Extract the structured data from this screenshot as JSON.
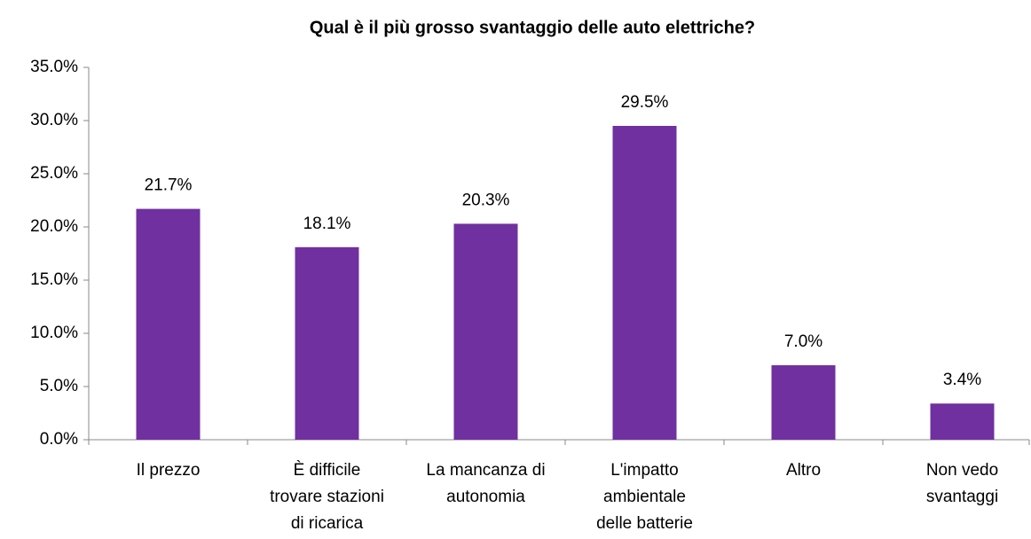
{
  "chart_data": {
    "type": "bar",
    "title": "Qual è il più grosso svantaggio delle auto elettriche?",
    "categories": [
      [
        "Il prezzo"
      ],
      [
        "È difficile",
        "trovare stazioni",
        "di ricarica"
      ],
      [
        "La mancanza di",
        "autonomia"
      ],
      [
        "L'impatto",
        "ambientale",
        "delle batterie"
      ],
      [
        "Altro"
      ],
      [
        "Non vedo",
        "svantaggi"
      ]
    ],
    "values": [
      21.7,
      18.1,
      20.3,
      29.5,
      7.0,
      3.4
    ],
    "value_labels": [
      "21.7%",
      "18.1%",
      "20.3%",
      "29.5%",
      "7.0%",
      "3.4%"
    ],
    "color": "#7030a0",
    "ylim": [
      0,
      35
    ],
    "yticks": [
      {
        "value": 0,
        "label": "0.0%"
      },
      {
        "value": 5,
        "label": "5.0%"
      },
      {
        "value": 10,
        "label": "10.0%"
      },
      {
        "value": 15,
        "label": "15.0%"
      },
      {
        "value": 20,
        "label": "20.0%"
      },
      {
        "value": 25,
        "label": "25.0%"
      },
      {
        "value": 30,
        "label": "30.0%"
      },
      {
        "value": 35,
        "label": "35.0%"
      }
    ],
    "grid": false
  }
}
